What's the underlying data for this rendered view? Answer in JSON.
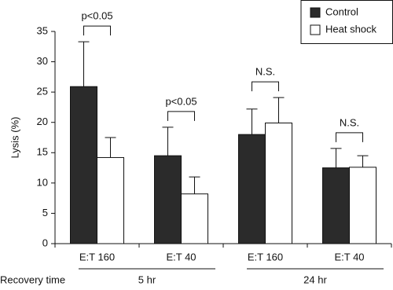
{
  "chart_data": {
    "type": "bar",
    "y_label": "Lysis (%)",
    "x_label": "Recovery time",
    "categories": [
      "E:T 160",
      "E:T 40",
      "E:T 160",
      "E:T 40"
    ],
    "groups": [
      "5 hr",
      "24 hr"
    ],
    "series": [
      {
        "name": "Control",
        "color": "#2b2b2b",
        "values": [
          25.9,
          14.5,
          18.0,
          12.5
        ],
        "errors": [
          7.4,
          4.7,
          4.2,
          3.2
        ]
      },
      {
        "name": "Heat shock",
        "color": "#ffffff",
        "values": [
          14.2,
          8.2,
          19.9,
          12.6
        ],
        "errors": [
          3.3,
          2.8,
          4.2,
          1.9
        ]
      }
    ],
    "annotations": [
      "p<0.05",
      "p<0.05",
      "N.S.",
      "N.S."
    ],
    "ylim": [
      0,
      35
    ],
    "yticks": [
      0,
      5,
      10,
      15,
      20,
      25,
      30,
      35
    ]
  }
}
